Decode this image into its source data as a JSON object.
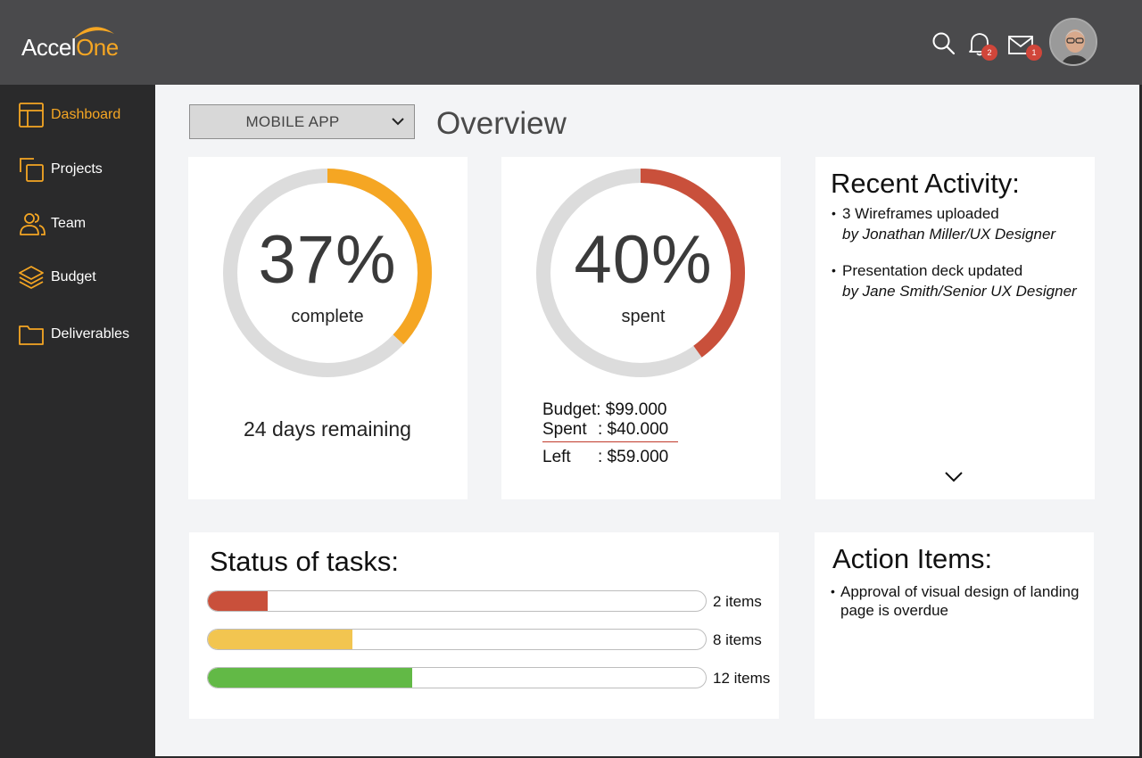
{
  "brand": {
    "name_part1": "Accel",
    "name_part2": "One",
    "accent": "#f5a623"
  },
  "header": {
    "icons": [
      "search-icon",
      "bell-icon",
      "mail-icon"
    ],
    "notifications_count": "2",
    "messages_count": "1"
  },
  "sidebar": {
    "items": [
      {
        "label": "Dashboard",
        "icon": "dashboard-icon",
        "active": true
      },
      {
        "label": "Projects",
        "icon": "projects-icon"
      },
      {
        "label": "Team",
        "icon": "team-icon"
      },
      {
        "label": "Budget",
        "icon": "layers-icon"
      },
      {
        "label": "Deliverables",
        "icon": "folder-icon"
      }
    ]
  },
  "main": {
    "project_select": "MOBILE APP",
    "title": "Overview"
  },
  "progress": {
    "percent_label": "37%",
    "percent": 37,
    "caption": "complete",
    "days_remaining": "24 days remaining",
    "color": "#f5a623"
  },
  "spending": {
    "percent_label": "40%",
    "percent": 40,
    "caption": "spent",
    "color": "#c9503b",
    "budget_label": "Budget:",
    "budget_value": "$99.000",
    "spent_label": "Spent",
    "spent_value": ": $40.000",
    "left_label": "Left",
    "left_value": ": $59.000"
  },
  "recent_activity": {
    "title": "Recent Activity:",
    "items": [
      {
        "text": "3 Wireframes uploaded",
        "by": "by Jonathan Miller/UX Designer"
      },
      {
        "text": "Presentation deck updated",
        "by": "by Jane Smith/Senior UX Designer"
      }
    ]
  },
  "tasks": {
    "title": "Status of tasks:",
    "rows": [
      {
        "count": "2 items",
        "fraction": 0.12,
        "color": "#c9503b"
      },
      {
        "count": "8 items",
        "fraction": 0.29,
        "color": "#f2c550"
      },
      {
        "count": "12 items",
        "fraction": 0.41,
        "color": "#62b946"
      }
    ]
  },
  "action_items": {
    "title": "Action Items:",
    "items": [
      "Approval of visual design of landing page is overdue"
    ]
  }
}
